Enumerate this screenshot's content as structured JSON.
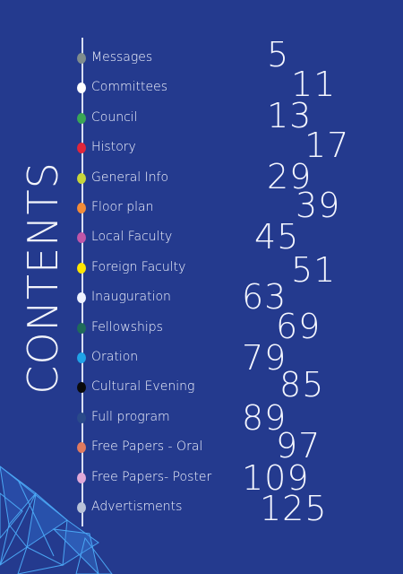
{
  "title": "CONTENTS",
  "items": [
    {
      "label": "Messages",
      "page": "5",
      "dot": "#7f8c8d"
    },
    {
      "label": "Committees",
      "page": "11",
      "dot": "#ffffff"
    },
    {
      "label": "Council",
      "page": "13",
      "dot": "#3aa655"
    },
    {
      "label": "History",
      "page": "17",
      "dot": "#e0263a"
    },
    {
      "label": "General Info",
      "page": "29",
      "dot": "#c7d63a"
    },
    {
      "label": "Floor plan",
      "page": "39",
      "dot": "#f28c38"
    },
    {
      "label": "Local Faculty",
      "page": "45",
      "dot": "#c056a8"
    },
    {
      "label": "Foreign Faculty",
      "page": "51",
      "dot": "#ffe600"
    },
    {
      "label": "Inauguration",
      "page": "63",
      "dot": "#eef2ff"
    },
    {
      "label": "Fellowships",
      "page": "69",
      "dot": "#1f6b5a"
    },
    {
      "label": "Oration",
      "page": "79",
      "dot": "#1fa3e8"
    },
    {
      "label": "Cultural Evening",
      "page": "85",
      "dot": "#0a0a0a"
    },
    {
      "label": "Full program",
      "page": "89",
      "dot": "#2a4a8a"
    },
    {
      "label": "Free Papers - Oral",
      "page": "97",
      "dot": "#e07a5f"
    },
    {
      "label": "Free Papers- Poster",
      "page": "109",
      "dot": "#e0a8d8"
    },
    {
      "label": "Advertisments",
      "page": "125",
      "dot": "#b8c2d8"
    }
  ]
}
